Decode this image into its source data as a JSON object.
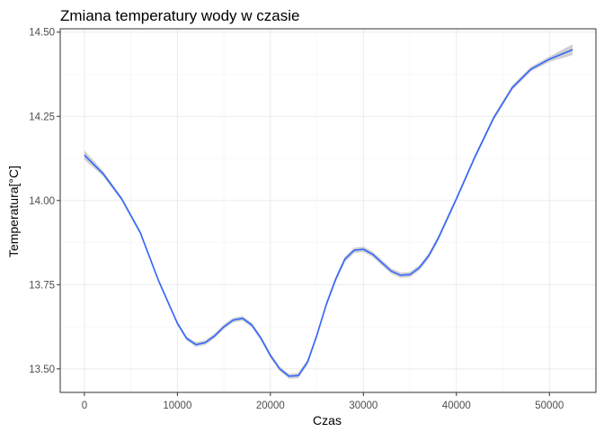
{
  "chart_data": {
    "type": "line",
    "title": "Zmiana temperatury wody w czasie",
    "xlabel": "Czas",
    "ylabel": "Temperatura[°C]",
    "xlim": [
      -2600,
      55000
    ],
    "ylim": [
      13.43,
      14.51
    ],
    "x_ticks": [
      0,
      10000,
      20000,
      30000,
      40000,
      50000
    ],
    "x_tick_labels": [
      "0",
      "10000",
      "20000",
      "30000",
      "40000",
      "50000"
    ],
    "y_ticks": [
      13.5,
      13.75,
      14.0,
      14.25,
      14.5
    ],
    "y_tick_labels": [
      "13.50",
      "13.75",
      "14.00",
      "14.25",
      "14.50"
    ],
    "grid": true,
    "confidence_band": true,
    "colors": {
      "line": "#3366ff",
      "band": "#c8c8c8",
      "panel_border": "#333333",
      "grid_major": "#ebebeb",
      "grid_minor": "#f5f5f5"
    },
    "series": [
      {
        "x": [
          0,
          2000,
          4000,
          6000,
          8000,
          10000,
          11000,
          12000,
          13000,
          14000,
          15000,
          16000,
          17000,
          18000,
          19000,
          20000,
          21000,
          22000,
          23000,
          24000,
          25000,
          26000,
          27000,
          28000,
          29000,
          30000,
          31000,
          32000,
          33000,
          34000,
          35000,
          36000,
          37000,
          38000,
          40000,
          42000,
          44000,
          46000,
          48000,
          50000,
          52500
        ],
        "y": [
          14.135,
          14.08,
          14.005,
          13.905,
          13.76,
          13.635,
          13.59,
          13.572,
          13.578,
          13.598,
          13.625,
          13.645,
          13.65,
          13.63,
          13.59,
          13.54,
          13.5,
          13.478,
          13.48,
          13.52,
          13.6,
          13.69,
          13.765,
          13.825,
          13.852,
          13.855,
          13.84,
          13.815,
          13.79,
          13.778,
          13.78,
          13.8,
          13.835,
          13.885,
          14.005,
          14.13,
          14.245,
          14.335,
          14.39,
          14.42,
          14.448
        ],
        "band_halfwidth": [
          0.014,
          0.008,
          0.006,
          0.006,
          0.006,
          0.006,
          0.006,
          0.007,
          0.007,
          0.007,
          0.007,
          0.007,
          0.007,
          0.007,
          0.007,
          0.007,
          0.007,
          0.007,
          0.008,
          0.008,
          0.008,
          0.008,
          0.008,
          0.008,
          0.008,
          0.008,
          0.008,
          0.008,
          0.008,
          0.008,
          0.008,
          0.008,
          0.008,
          0.008,
          0.007,
          0.007,
          0.007,
          0.007,
          0.007,
          0.008,
          0.016
        ]
      }
    ]
  }
}
